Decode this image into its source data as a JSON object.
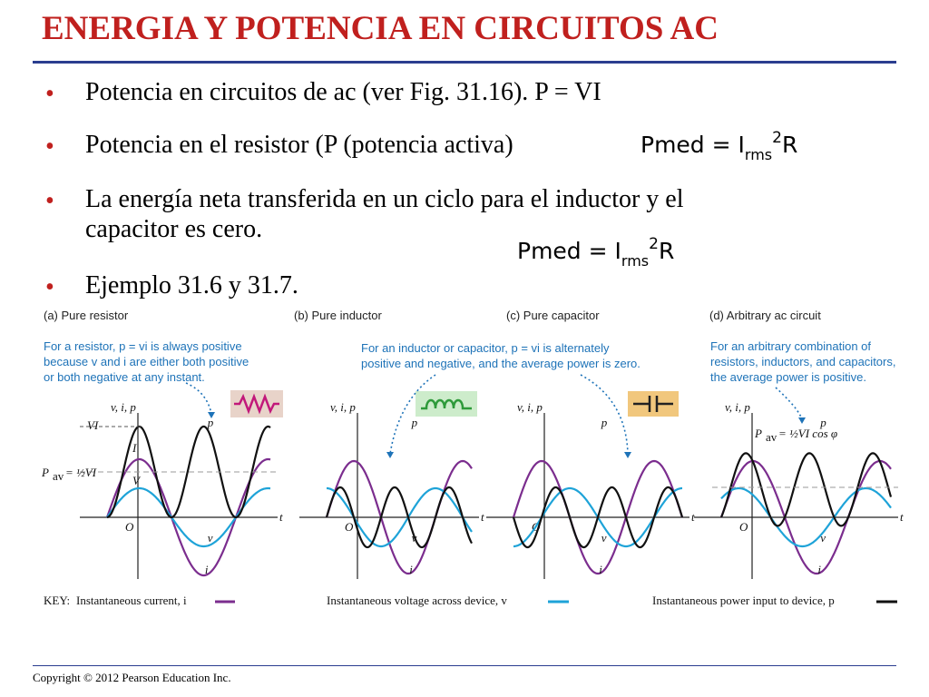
{
  "title": "ENERGIA Y POTENCIA EN CIRCUITOS AC",
  "bullets": [
    {
      "symbol": "•",
      "lines": [
        "Potencia en circuitos de ac (ver Fig. 31.16). P = VI"
      ]
    },
    {
      "symbol": "•",
      "lines": [
        "Potencia en el resistor (P (potencia activa)"
      ]
    },
    {
      "symbol": "•",
      "lines": [
        "La energía neta transferida en un ciclo para el inductor y el",
        "capacitor es cero."
      ]
    },
    {
      "symbol": "•",
      "lines": [
        "Ejemplo 31.6 y 31.7."
      ]
    }
  ],
  "formula": {
    "lhs": "Pmed = I",
    "sub": "rms",
    "sup": "2",
    "rhs": "R"
  },
  "panels": [
    {
      "label": "(a) Pure resistor",
      "note": [
        "For a resistor, p = vi is always positive",
        "because v and i are either both positive",
        "or both negative at any instant."
      ],
      "icon": "resistor-icon"
    },
    {
      "label": "(b) Pure inductor",
      "note": [],
      "icon": "inductor-icon"
    },
    {
      "label": "(c) Pure capacitor",
      "note": [],
      "icon": "capacitor-icon"
    },
    {
      "label": "(d) Arbitrary ac circuit",
      "note": [
        "For an arbitrary combination of",
        "resistors, inductors, and capacitors,",
        "the average power is positive."
      ],
      "icon": "arbitrary-circuit"
    }
  ],
  "shared_note": [
    "For an inductor or capacitor, p = vi is alternately",
    "positive and negative, and the average power is zero."
  ],
  "graph_labels": {
    "vip": "v, i, p",
    "t": "t",
    "O": "O",
    "p": "p",
    "v": "v",
    "i": "i",
    "VI": "VI",
    "I": "I",
    "V": "V",
    "Pav": "P",
    "Pav_sub": "av",
    "Pav_eq": "= ½VI",
    "Pav_d": "= ½VI cos φ"
  },
  "key": {
    "label": "KEY:",
    "items": [
      {
        "text": "Instantaneous current, i",
        "color": "#7b2d8e"
      },
      {
        "text": "Instantaneous voltage across device, v",
        "color": "#1ea3d8"
      },
      {
        "text": "Instantaneous power input to device, p",
        "color": "#111111"
      }
    ]
  },
  "colors": {
    "title": "#c0201e",
    "rule": "#2a3d8f",
    "current": "#7b2d8e",
    "voltage": "#1ea3d8",
    "power": "#111111",
    "note": "#1e73b8"
  },
  "copyright": "Copyright © 2012 Pearson Education Inc."
}
